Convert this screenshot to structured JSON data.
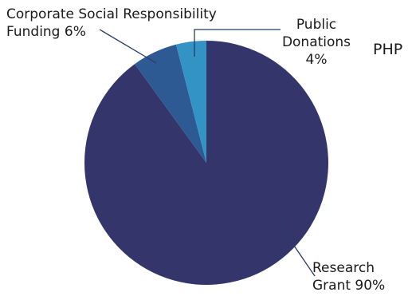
{
  "chart_data": {
    "type": "pie",
    "title": "",
    "corner_label": "PHP",
    "start_angle_deg": 0,
    "direction": "clockwise",
    "slices": [
      {
        "label_lines": [
          "Research",
          "Grant 90%"
        ],
        "value": 90,
        "color": "#33356b"
      },
      {
        "label_lines": [
          "Corporate Social Responsibility",
          "Funding 6%"
        ],
        "value": 6,
        "color": "#2d5a93"
      },
      {
        "label_lines": [
          "Public",
          "Donations",
          "4%"
        ],
        "value": 4,
        "color": "#3293c4"
      }
    ]
  }
}
